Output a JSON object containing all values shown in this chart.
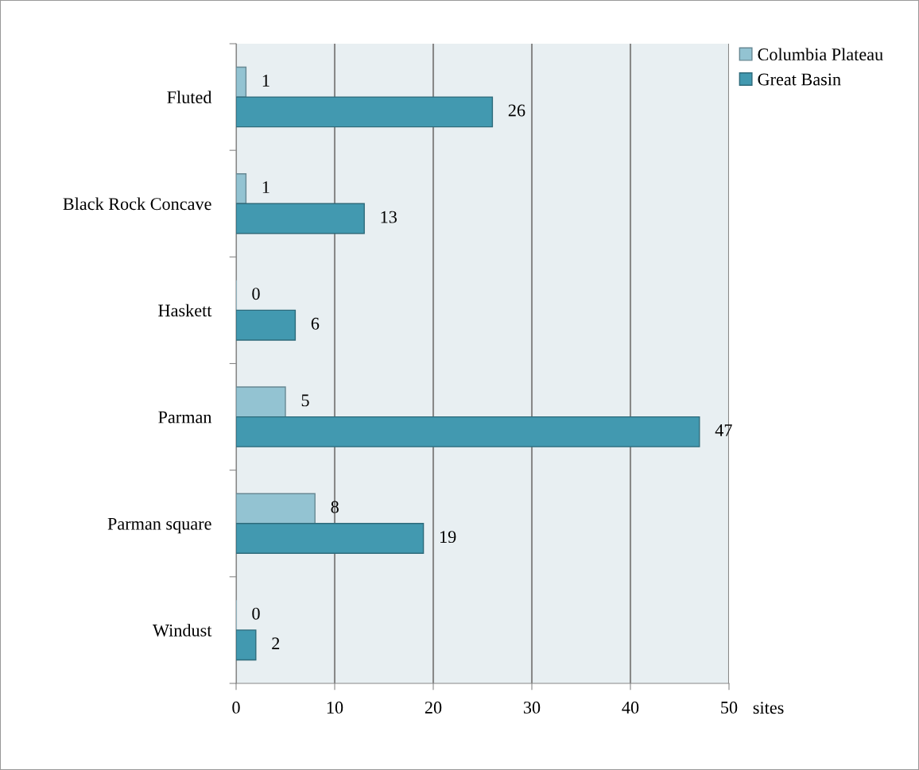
{
  "chart_data": {
    "type": "bar",
    "orientation": "horizontal",
    "xlabel": "sites",
    "categories": [
      "Fluted",
      "Black Rock Concave",
      "Haskett",
      "Parman",
      "Parman square",
      "Windust"
    ],
    "series": [
      {
        "name": "Columbia Plateau",
        "color": "#93c3d2",
        "values": [
          1,
          1,
          0,
          5,
          8,
          0
        ]
      },
      {
        "name": "Great Basin",
        "color": "#4299b0",
        "values": [
          26,
          13,
          6,
          47,
          19,
          2
        ]
      }
    ],
    "xlim": [
      0,
      50
    ],
    "xticks": [
      0,
      10,
      20,
      30,
      40,
      50
    ],
    "grid": "x",
    "legend": "top right",
    "data_labels": true
  }
}
